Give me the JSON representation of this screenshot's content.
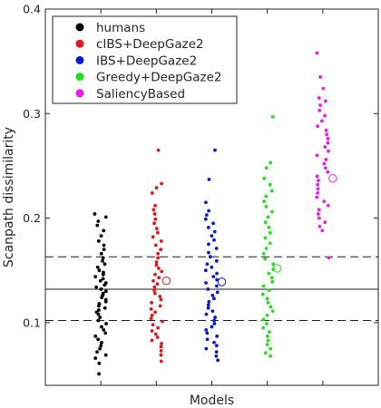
{
  "chart_data": {
    "type": "scatter",
    "title": "",
    "xlabel": "Models",
    "ylabel": "Scanpath dissimilarity",
    "ylim": [
      0.04,
      0.4
    ],
    "yticks": [
      0.1,
      0.2,
      0.3,
      0.4
    ],
    "yticklabels": [
      "0.1",
      "0.2",
      "0.3",
      "0.4"
    ],
    "grid": false,
    "legend_position": "top-left",
    "reference_lines": [
      {
        "y": 0.132,
        "style": "solid"
      },
      {
        "y": 0.163,
        "style": "dashed"
      },
      {
        "y": 0.102,
        "style": "dashed"
      }
    ],
    "series": [
      {
        "name": "humans",
        "color": "#000000",
        "x": 1,
        "mean": null,
        "values": [
          0.204,
          0.201,
          0.197,
          0.193,
          0.188,
          0.183,
          0.178,
          0.174,
          0.17,
          0.166,
          0.162,
          0.159,
          0.156,
          0.153,
          0.15,
          0.148,
          0.146,
          0.144,
          0.142,
          0.14,
          0.138,
          0.136,
          0.134,
          0.132,
          0.13,
          0.128,
          0.126,
          0.124,
          0.122,
          0.12,
          0.118,
          0.116,
          0.114,
          0.112,
          0.11,
          0.108,
          0.105,
          0.102,
          0.099,
          0.096,
          0.093,
          0.09,
          0.087,
          0.084,
          0.081,
          0.078,
          0.075,
          0.072,
          0.069,
          0.066,
          0.061,
          0.051
        ]
      },
      {
        "name": "cIBS+DeepGaze2",
        "color": "#e8141c",
        "x": 2,
        "mean": 0.14,
        "values": [
          0.265,
          0.233,
          0.229,
          0.224,
          0.212,
          0.208,
          0.204,
          0.199,
          0.195,
          0.19,
          0.186,
          0.182,
          0.178,
          0.174,
          0.17,
          0.166,
          0.162,
          0.158,
          0.155,
          0.152,
          0.149,
          0.146,
          0.143,
          0.14,
          0.137,
          0.134,
          0.131,
          0.128,
          0.125,
          0.122,
          0.119,
          0.116,
          0.113,
          0.11,
          0.107,
          0.104,
          0.101,
          0.098,
          0.095,
          0.092,
          0.089,
          0.086,
          0.083,
          0.08,
          0.077,
          0.073,
          0.069,
          0.063
        ]
      },
      {
        "name": "IBS+DeepGaze2",
        "color": "#0a1ad0",
        "x": 3,
        "mean": 0.139,
        "values": [
          0.265,
          0.237,
          0.215,
          0.207,
          0.203,
          0.199,
          0.195,
          0.191,
          0.187,
          0.183,
          0.179,
          0.175,
          0.171,
          0.167,
          0.163,
          0.159,
          0.156,
          0.153,
          0.15,
          0.147,
          0.144,
          0.141,
          0.138,
          0.135,
          0.132,
          0.129,
          0.126,
          0.123,
          0.12,
          0.117,
          0.114,
          0.111,
          0.108,
          0.105,
          0.102,
          0.099,
          0.096,
          0.093,
          0.09,
          0.087,
          0.084,
          0.081,
          0.078,
          0.075,
          0.072,
          0.068,
          0.064
        ]
      },
      {
        "name": "Greedy+DeepGaze2",
        "color": "#22e01a",
        "x": 4,
        "mean": 0.152,
        "values": [
          0.297,
          0.253,
          0.248,
          0.238,
          0.232,
          0.226,
          0.221,
          0.216,
          0.211,
          0.206,
          0.201,
          0.196,
          0.191,
          0.186,
          0.181,
          0.176,
          0.171,
          0.166,
          0.161,
          0.156,
          0.151,
          0.147,
          0.143,
          0.139,
          0.135,
          0.131,
          0.127,
          0.123,
          0.119,
          0.115,
          0.111,
          0.107,
          0.103,
          0.099,
          0.095,
          0.091,
          0.087,
          0.083,
          0.079,
          0.075,
          0.071,
          0.068
        ]
      },
      {
        "name": "SaliencyBased",
        "color": "#f01ae8",
        "x": 5,
        "mean": 0.238,
        "values": [
          0.358,
          0.335,
          0.324,
          0.315,
          0.312,
          0.308,
          0.303,
          0.298,
          0.293,
          0.288,
          0.284,
          0.28,
          0.276,
          0.272,
          0.268,
          0.264,
          0.26,
          0.256,
          0.252,
          0.248,
          0.244,
          0.24,
          0.236,
          0.232,
          0.228,
          0.224,
          0.22,
          0.216,
          0.212,
          0.208,
          0.204,
          0.2,
          0.196,
          0.192,
          0.188,
          0.162
        ]
      }
    ]
  }
}
